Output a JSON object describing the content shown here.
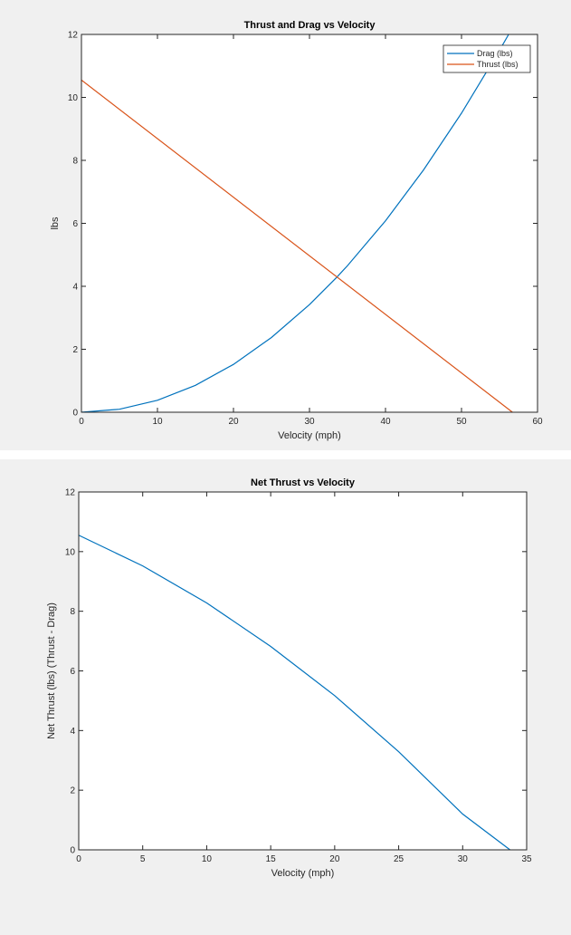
{
  "colors": {
    "series1": "#0072BD",
    "series2": "#D95319",
    "axes": "#262626",
    "background": "#ffffff",
    "figure": "#f0f0f0"
  },
  "chart_data": [
    {
      "type": "line",
      "title": "Thrust and Drag vs Velocity",
      "xlabel": "Velocity (mph)",
      "ylabel": "lbs",
      "xlim": [
        0,
        60
      ],
      "ylim": [
        0,
        12
      ],
      "xticks": [
        0,
        10,
        20,
        30,
        40,
        50,
        60
      ],
      "yticks": [
        0,
        2,
        4,
        6,
        8,
        10,
        12
      ],
      "grid": false,
      "legend_position": "top-right",
      "series": [
        {
          "name": "Drag (lbs)",
          "color": "#0072BD",
          "x": [
            0,
            5,
            10,
            15,
            20,
            25,
            30,
            33.6,
            35,
            40,
            45,
            50,
            55,
            56.2
          ],
          "y": [
            0,
            0.095,
            0.38,
            0.855,
            1.52,
            2.375,
            3.42,
            4.29,
            4.655,
            6.08,
            7.695,
            9.5,
            11.495,
            12.0
          ]
        },
        {
          "name": "Thrust (lbs)",
          "color": "#D95319",
          "x": [
            0,
            56.7
          ],
          "y": [
            10.55,
            0
          ]
        }
      ]
    },
    {
      "type": "line",
      "title": "Net Thrust vs Velocity",
      "xlabel": "Velocity (mph)",
      "ylabel": "Net Thrust (lbs) (Thrust - Drag)",
      "xlim": [
        0,
        35
      ],
      "ylim": [
        0,
        12
      ],
      "xticks": [
        0,
        5,
        10,
        15,
        20,
        25,
        30,
        35
      ],
      "yticks": [
        0,
        2,
        4,
        6,
        8,
        10,
        12
      ],
      "grid": false,
      "series": [
        {
          "color": "#0072BD",
          "x": [
            0,
            5,
            10,
            15,
            20,
            25,
            30,
            33.7
          ],
          "y": [
            10.55,
            9.52,
            8.28,
            6.82,
            5.17,
            3.29,
            1.2,
            0
          ]
        }
      ]
    }
  ]
}
